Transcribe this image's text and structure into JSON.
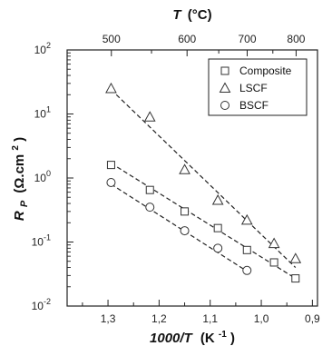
{
  "chart_data": {
    "type": "scatter",
    "x_axis": {
      "label_italic": "1000/T",
      "label_unit": "(K",
      "label_unit_sup": "-1",
      "label_unit_close": ")",
      "min": 1.38,
      "max": 0.89,
      "reversed": true,
      "ticks": [
        1.3,
        1.2,
        1.1,
        1.0,
        0.9
      ],
      "tick_labels": [
        "1,3",
        "1,2",
        "1,1",
        "1,0",
        "0,9"
      ]
    },
    "top_axis": {
      "label_italic": "T",
      "label_unit": "(°C)",
      "ticks_celsius": [
        500,
        600,
        700,
        800
      ],
      "tick_labels": [
        "500",
        "600",
        "700",
        "800"
      ]
    },
    "y_axis": {
      "label_italic": "R",
      "label_sub": "P",
      "label_unit": "(Ω.cm",
      "label_unit_sup": "2",
      "label_unit_close": ")",
      "scale": "log",
      "min": 0.01,
      "max": 100,
      "ticks": [
        0.01,
        0.1,
        1,
        10,
        100
      ],
      "tick_base": "10",
      "tick_exponents": [
        "-2",
        "-1",
        "0",
        "1",
        "2"
      ]
    },
    "legend": {
      "position": "top-right"
    },
    "series": [
      {
        "name": "Composite",
        "marker": "square",
        "x": [
          1.294,
          1.218,
          1.15,
          1.085,
          1.028,
          0.975,
          0.933
        ],
        "y": [
          1.6,
          0.65,
          0.3,
          0.165,
          0.075,
          0.048,
          0.027
        ],
        "fit": {
          "x": [
            1.294,
            0.933
          ],
          "y": [
            1.7,
            0.027
          ]
        }
      },
      {
        "name": "LSCF",
        "marker": "triangle",
        "x": [
          1.294,
          1.218,
          1.15,
          1.085,
          1.028,
          0.975,
          0.933
        ],
        "y": [
          25,
          9,
          1.35,
          0.45,
          0.22,
          0.095,
          0.055
        ],
        "fit": {
          "x": [
            1.294,
            0.933
          ],
          "y": [
            24,
            0.04
          ]
        }
      },
      {
        "name": "BSCF",
        "marker": "circle",
        "x": [
          1.294,
          1.218,
          1.15,
          1.085,
          1.028
        ],
        "y": [
          0.85,
          0.35,
          0.15,
          0.08,
          0.036
        ],
        "fit": {
          "x": [
            1.294,
            1.028
          ],
          "y": [
            0.8,
            0.035
          ]
        }
      }
    ]
  }
}
